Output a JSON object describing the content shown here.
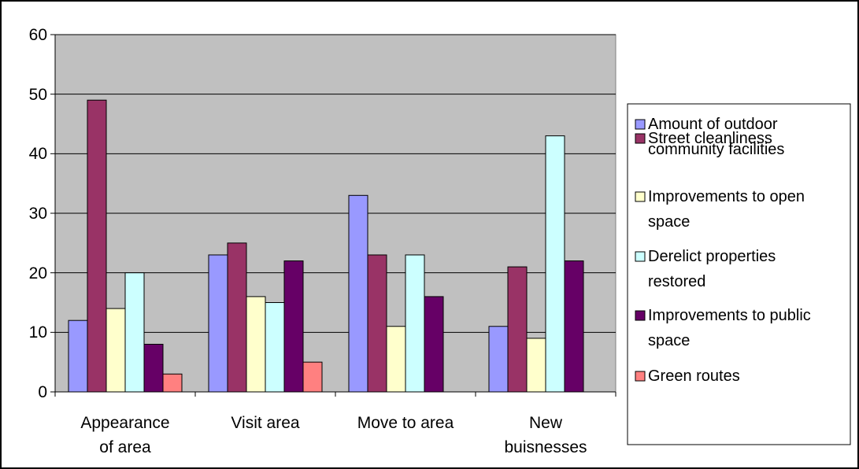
{
  "chart_data": {
    "type": "bar",
    "categories": [
      "Appearance\nof area",
      "Visit area",
      "Move to area",
      "New\nbuisnesses"
    ],
    "series": [
      {
        "name": "Amount of outdoor\ncommunity facilities",
        "color": "#9999ff",
        "values": [
          12,
          23,
          33,
          11
        ]
      },
      {
        "name": "Street cleanliness",
        "color": "#993366",
        "values": [
          49,
          25,
          23,
          21
        ]
      },
      {
        "name": "Improvements to open\nspace",
        "color": "#ffffcc",
        "values": [
          14,
          16,
          11,
          9
        ]
      },
      {
        "name": "Derelict properties\nrestored",
        "color": "#ccffff",
        "values": [
          20,
          15,
          23,
          43
        ]
      },
      {
        "name": "Improvements to public\nspace",
        "color": "#660066",
        "values": [
          8,
          22,
          16,
          22
        ]
      },
      {
        "name": "Green routes",
        "color": "#ff8080",
        "values": [
          3,
          5,
          0,
          0
        ]
      }
    ],
    "ylim": [
      0,
      60
    ],
    "yticks": [
      0,
      10,
      20,
      30,
      40,
      50,
      60
    ],
    "grid": true,
    "legend": "right"
  }
}
